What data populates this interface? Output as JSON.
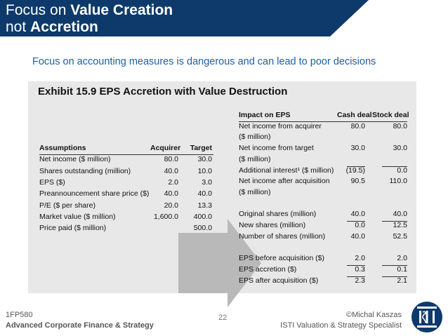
{
  "slide": {
    "title_line1_normal": "Focus on ",
    "title_line1_bold": "Value Creation",
    "title_line2_normal": "not ",
    "title_line2_bold": "Accretion",
    "subtitle": "Focus on accounting measures is dangerous and can lead to poor decisions",
    "page_number": "22"
  },
  "exhibit": {
    "title": "Exhibit 15.9 EPS Accretion with Value Destruction"
  },
  "assumptions": {
    "headers": [
      "Assumptions",
      "Acquirer",
      "Target"
    ],
    "rows": [
      [
        "Net income ($ million)",
        "80.0",
        "30.0"
      ],
      [
        "Shares outstanding (million)",
        "40.0",
        "10.0"
      ],
      [
        "EPS ($)",
        "2.0",
        "3.0"
      ],
      [
        "Preannouncement share price ($)",
        "40.0",
        "40.0"
      ],
      [
        "P/E ($ per share)",
        "20.0",
        "13.3"
      ],
      [
        "Market value ($ million)",
        "1,600.0",
        "400.0"
      ],
      [
        "Price paid ($ million)",
        "",
        "500.0"
      ]
    ]
  },
  "impact": {
    "headers": [
      "Impact on EPS",
      "Cash deal",
      "Stock deal"
    ],
    "rows": [
      [
        "Net income from acquirer",
        "80.0",
        "80.0"
      ],
      [
        "($ million)",
        "",
        ""
      ],
      [
        "Net income from target",
        "30.0",
        "30.0"
      ],
      [
        "($ million)",
        "",
        ""
      ],
      [
        "Additional interest¹ ($ million)",
        "(19.5)",
        "0.0"
      ],
      [
        "Net income after acquisition",
        "90.5",
        "110.0"
      ],
      [
        "($ million)",
        "",
        ""
      ],
      [
        "",
        "",
        ""
      ],
      [
        "Original shares (million)",
        "40.0",
        "40.0"
      ],
      [
        "New shares (million)",
        "0.0",
        "12.5"
      ],
      [
        "Number of shares (million)",
        "40.0",
        "52.5"
      ],
      [
        "",
        "",
        ""
      ],
      [
        "EPS before acquisition ($)",
        "2.0",
        "2.0"
      ],
      [
        "EPS accretion ($)",
        "0.3",
        "0.1"
      ],
      [
        "EPS after acquisition ($)",
        "2.3",
        "2.1"
      ]
    ]
  },
  "footer": {
    "course_code": "1FP580",
    "course_name": "Advanced Corporate Finance & Strategy",
    "author": "©Michal Kaszas",
    "affiliation": "ISTI Valuation & Strategy Specialist",
    "logo_text": "ISTI"
  },
  "colors": {
    "title_bar": "#0d3a6b",
    "subtitle": "#1b5fa6",
    "exhibit_bg": "#e8e8e8",
    "arrow": "#b9b9b9"
  }
}
